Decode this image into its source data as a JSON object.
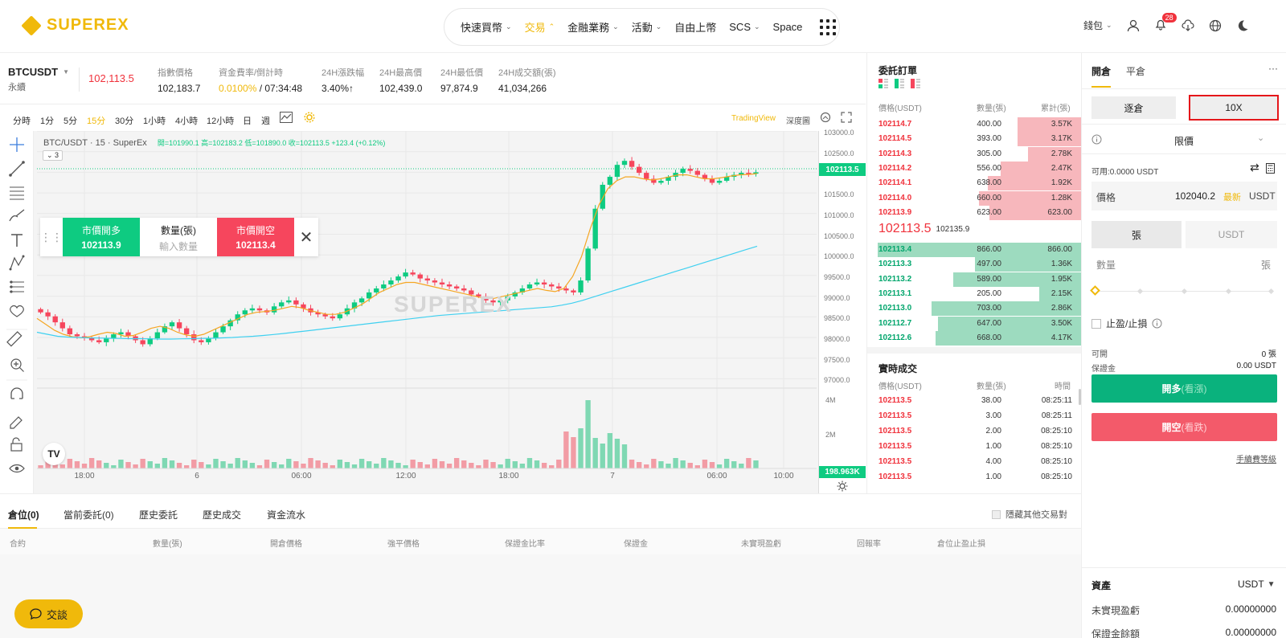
{
  "brand": {
    "name": "SUPEREX",
    "color": "#f0b90b"
  },
  "nav": {
    "items": [
      {
        "label": "快速買幣",
        "has_menu": true,
        "active": false
      },
      {
        "label": "交易",
        "has_menu": true,
        "active": true
      },
      {
        "label": "金融業務",
        "has_menu": true,
        "active": false
      },
      {
        "label": "活動",
        "has_menu": true,
        "active": false
      },
      {
        "label": "自由上幣",
        "has_menu": false,
        "active": false
      },
      {
        "label": "SCS",
        "has_menu": true,
        "active": false
      },
      {
        "label": "Space",
        "has_menu": false,
        "active": false
      }
    ]
  },
  "header_right": {
    "wallet": "錢包",
    "notification_count": "28"
  },
  "ticker": {
    "pair": "BTCUSDT",
    "pair_sub": "永續",
    "last_price": "102,113.5",
    "stats": [
      {
        "label": "指數價格",
        "value": "102,183.7"
      },
      {
        "label": "資金費率/倒計時",
        "value_rate": "0.0100%",
        "value_rest": " / 07:34:48"
      },
      {
        "label": "24H漲跌幅",
        "value": "3.40%↑"
      },
      {
        "label": "24H最高價",
        "value": "102,439.0"
      },
      {
        "label": "24H最低價",
        "value": "97,874.9"
      },
      {
        "label": "24H成交額(張)",
        "value": "41,034,266"
      }
    ]
  },
  "chart_toolbar": {
    "timeframes": [
      "分時",
      "1分",
      "5分",
      "15分",
      "30分",
      "1小時",
      "4小時",
      "12小時",
      "日",
      "週"
    ],
    "active_timeframe": "15分",
    "tradingview": "TradingView",
    "depth": "深度圖"
  },
  "chart": {
    "title": "BTC/USDT · 15 · SuperEx",
    "ohlc": "開=101990.1 高=102183.2 低=101890.0 收=102113.5 +123.4 (+0.12%)",
    "indicator_count": "3",
    "watermark": "SUPEREX",
    "last_price_tag": "102113.5",
    "volume_tag": "198.963K",
    "price_ticks": [
      "103000.0",
      "102500.0",
      "102000.0",
      "101500.0",
      "101000.0",
      "100500.0",
      "100000.0",
      "99500.0",
      "99000.0",
      "98500.0",
      "98000.0",
      "97500.0",
      "97000.0"
    ],
    "volume_ticks": [
      "4M",
      "2M"
    ],
    "time_ticks": [
      "18:00",
      "6",
      "06:00",
      "12:00",
      "18:00",
      "7",
      "06:00",
      "10:00"
    ]
  },
  "chart_data": {
    "type": "candlestick",
    "symbol": "BTC/USDT",
    "interval": "15",
    "ylim": [
      96800,
      103200
    ],
    "close_points": [
      98600,
      98500,
      98350,
      98200,
      98050,
      98000,
      97950,
      97900,
      97850,
      97950,
      98050,
      98100,
      98000,
      97900,
      97800,
      97950,
      98100,
      98250,
      98350,
      98200,
      98050,
      97900,
      97850,
      97950,
      98100,
      98250,
      98400,
      98550,
      98650,
      98700,
      98650,
      98600,
      98750,
      98850,
      98900,
      98800,
      98700,
      98600,
      98550,
      98500,
      98450,
      98550,
      98700,
      98850,
      98950,
      99100,
      99200,
      99300,
      99400,
      99500,
      99600,
      99550,
      99450,
      99400,
      99350,
      99300,
      99250,
      99200,
      99150,
      99050,
      99000,
      98900,
      98850,
      98900,
      99000,
      99100,
      99200,
      99300,
      99350,
      99300,
      99250,
      99200,
      99150,
      99100,
      99400,
      100200,
      101200,
      101800,
      102000,
      102300,
      102400,
      102250,
      102100,
      101950,
      101850,
      101900,
      102000,
      102100,
      102200,
      102150,
      102050,
      101950,
      101850,
      101900,
      102000,
      102050,
      102100,
      102080,
      102113.5
    ],
    "ema_short": [
      98450,
      98300,
      98150,
      98050,
      97990,
      97960,
      97990,
      98050,
      98100,
      98070,
      98000,
      98020,
      98100,
      98200,
      98250,
      98200,
      98100,
      98030,
      98000,
      98050,
      98150,
      98250,
      98350,
      98450,
      98550,
      98600,
      98620,
      98650,
      98700,
      98750,
      98720,
      98650,
      98600,
      98550,
      98550,
      98600,
      98700,
      98800,
      98950,
      99100,
      99200,
      99300,
      99350,
      99350,
      99300,
      99250,
      99200,
      99150,
      99100,
      99050,
      99000,
      98950,
      98950,
      99000,
      99050,
      99100,
      99150,
      99200,
      99150,
      99120,
      99200,
      99500,
      100000,
      100700,
      101300,
      101700,
      101900,
      102000,
      102000,
      101950,
      101920,
      101950,
      102000,
      102050,
      102050,
      102000,
      101950,
      101950,
      101980,
      102020,
      102050,
      102060,
      102080
    ],
    "ema_long": [
      98100,
      98050,
      98000,
      97980,
      97970,
      97960,
      97955,
      97950,
      97945,
      97940,
      97940,
      97935,
      97930,
      97930,
      97935,
      97940,
      97945,
      97950,
      97960,
      97970,
      97985,
      98000,
      98020,
      98045,
      98070,
      98100,
      98130,
      98160,
      98190,
      98220,
      98250,
      98280,
      98310,
      98340,
      98370,
      98400,
      98430,
      98460,
      98490,
      98520,
      98540,
      98560,
      98580,
      98600,
      98620,
      98640,
      98660,
      98680,
      98700,
      98720,
      98740,
      98780,
      98830,
      98900,
      98980,
      99060,
      99140,
      99220,
      99300,
      99380,
      99460,
      99540,
      99620,
      99700,
      99780,
      99860,
      99940,
      100020,
      100100,
      100180,
      100260
    ],
    "volume_max_label": "4M"
  },
  "order_book": {
    "title": "委託訂單",
    "headers": [
      "價格(USDT)",
      "數量(張)",
      "累計(張)"
    ],
    "asks": [
      {
        "price": "102114.7",
        "qty": "400.00",
        "cum": "3.57K",
        "depth": 0.3
      },
      {
        "price": "102114.5",
        "qty": "393.00",
        "cum": "3.17K",
        "depth": 0.3
      },
      {
        "price": "102114.3",
        "qty": "305.00",
        "cum": "2.78K",
        "depth": 0.25
      },
      {
        "price": "102114.2",
        "qty": "556.00",
        "cum": "2.47K",
        "depth": 0.38
      },
      {
        "price": "102114.1",
        "qty": "638.00",
        "cum": "1.92K",
        "depth": 0.44
      },
      {
        "price": "102114.0",
        "qty": "660.00",
        "cum": "1.28K",
        "depth": 0.48
      },
      {
        "price": "102113.9",
        "qty": "623.00",
        "cum": "623.00",
        "depth": 0.43
      }
    ],
    "mid_price": "102113.5",
    "mid_index": "102135.9",
    "bids": [
      {
        "price": "102113.4",
        "qty": "866.00",
        "cum": "866.00",
        "depth": 0.95
      },
      {
        "price": "102113.3",
        "qty": "497.00",
        "cum": "1.36K",
        "depth": 0.5
      },
      {
        "price": "102113.2",
        "qty": "589.00",
        "cum": "1.95K",
        "depth": 0.6
      },
      {
        "price": "102113.1",
        "qty": "205.00",
        "cum": "2.15K",
        "depth": 0.2
      },
      {
        "price": "102113.0",
        "qty": "703.00",
        "cum": "2.86K",
        "depth": 0.7
      },
      {
        "price": "102112.7",
        "qty": "647.00",
        "cum": "3.50K",
        "depth": 0.67
      },
      {
        "price": "102112.6",
        "qty": "668.00",
        "cum": "4.17K",
        "depth": 0.68
      }
    ]
  },
  "trades": {
    "title": "實時成交",
    "headers": [
      "價格(USDT)",
      "數量(張)",
      "時間"
    ],
    "rows": [
      {
        "price": "102113.5",
        "qty": "38.00",
        "time": "08:25:11"
      },
      {
        "price": "102113.5",
        "qty": "3.00",
        "time": "08:25:11"
      },
      {
        "price": "102113.5",
        "qty": "2.00",
        "time": "08:25:10"
      },
      {
        "price": "102113.5",
        "qty": "1.00",
        "time": "08:25:10"
      },
      {
        "price": "102113.5",
        "qty": "4.00",
        "time": "08:25:10"
      },
      {
        "price": "102113.5",
        "qty": "1.00",
        "time": "08:25:10"
      }
    ]
  },
  "quick_trade": {
    "buy_label": "市價開多",
    "buy_price": "102113.9",
    "qty_label": "數量(張)",
    "qty_placeholder": "輸入數量",
    "sell_label": "市價開空",
    "sell_price": "102113.4"
  },
  "positions": {
    "tabs": [
      "倉位(0)",
      "當前委託(0)",
      "歷史委託",
      "歷史成交",
      "資金流水"
    ],
    "active_tab": "倉位(0)",
    "hide_others": "隱藏其他交易對",
    "columns": [
      "合約",
      "數量(張)",
      "開倉價格",
      "強平價格",
      "保證金比率",
      "保證金",
      "未實現盈虧",
      "回報率",
      "倉位止盈止損"
    ]
  },
  "order_panel": {
    "tabs": [
      "開倉",
      "平倉"
    ],
    "active_tab": "開倉",
    "margin_mode": "逐倉",
    "leverage": "10X",
    "order_type": "限價",
    "available": "可用:0.0000 USDT",
    "price_label": "價格",
    "price_value": "102040.2",
    "price_latest": "最新",
    "price_unit": "USDT",
    "unit_options": [
      "張",
      "USDT"
    ],
    "qty_label": "數量",
    "qty_unit": "張",
    "tpsl": "止盈/止損",
    "avail_label": "可開",
    "avail_value": "0 張",
    "margin_label": "保證金",
    "margin_value": "0.00 USDT",
    "buy_btn": "開多",
    "buy_hint": "(看漲)",
    "sell_btn": "開空",
    "sell_hint": "(看跌)",
    "fee_link": "手續費等級",
    "assets_title": "資產",
    "assets_currency": "USDT",
    "unrealized_label": "未實現盈虧",
    "unrealized_value": "0.00000000",
    "margin_balance_label": "保證金餘額",
    "margin_balance_value": "0.00000000"
  },
  "chat": {
    "label": "交談"
  }
}
